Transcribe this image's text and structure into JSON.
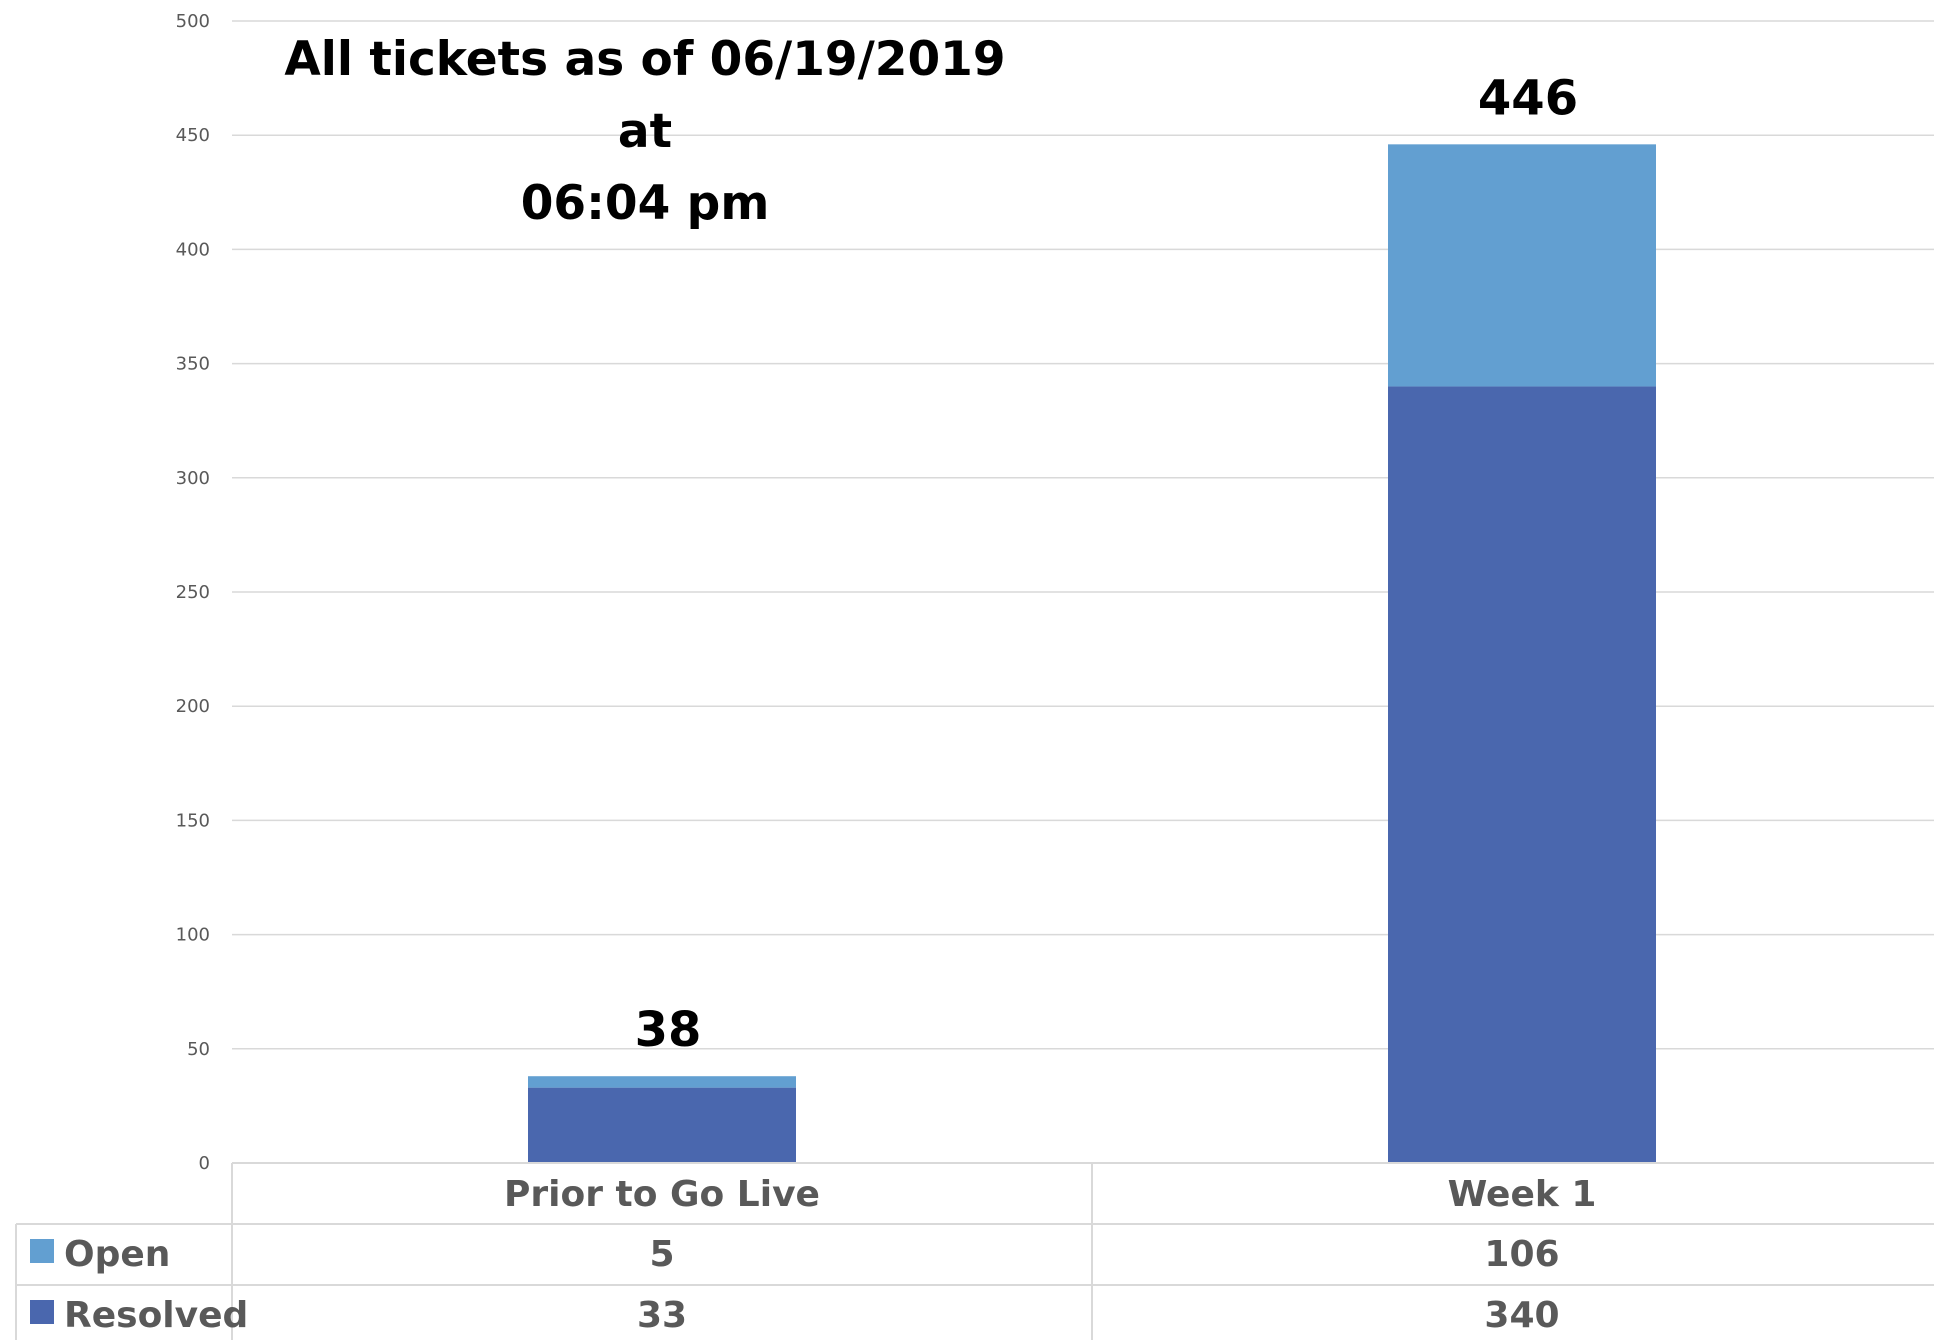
{
  "chart_data": {
    "type": "bar",
    "stacked": true,
    "title_lines": [
      "All tickets as of 06/19/2019 at",
      "06:04 pm"
    ],
    "categories": [
      "Prior to Go Live",
      "Week 1"
    ],
    "series": [
      {
        "name": "Resolved",
        "values": [
          33,
          340
        ],
        "color": "#4a67ae"
      },
      {
        "name": "Open",
        "values": [
          5,
          106
        ],
        "color": "#629fd1"
      }
    ],
    "totals": [
      38,
      446
    ],
    "ylim": [
      0,
      500
    ],
    "yticks": [
      0,
      50,
      100,
      150,
      200,
      250,
      300,
      350,
      400,
      450,
      500
    ],
    "grid": true,
    "legend": "data-table",
    "table_rows": [
      "Open",
      "Resolved"
    ]
  }
}
